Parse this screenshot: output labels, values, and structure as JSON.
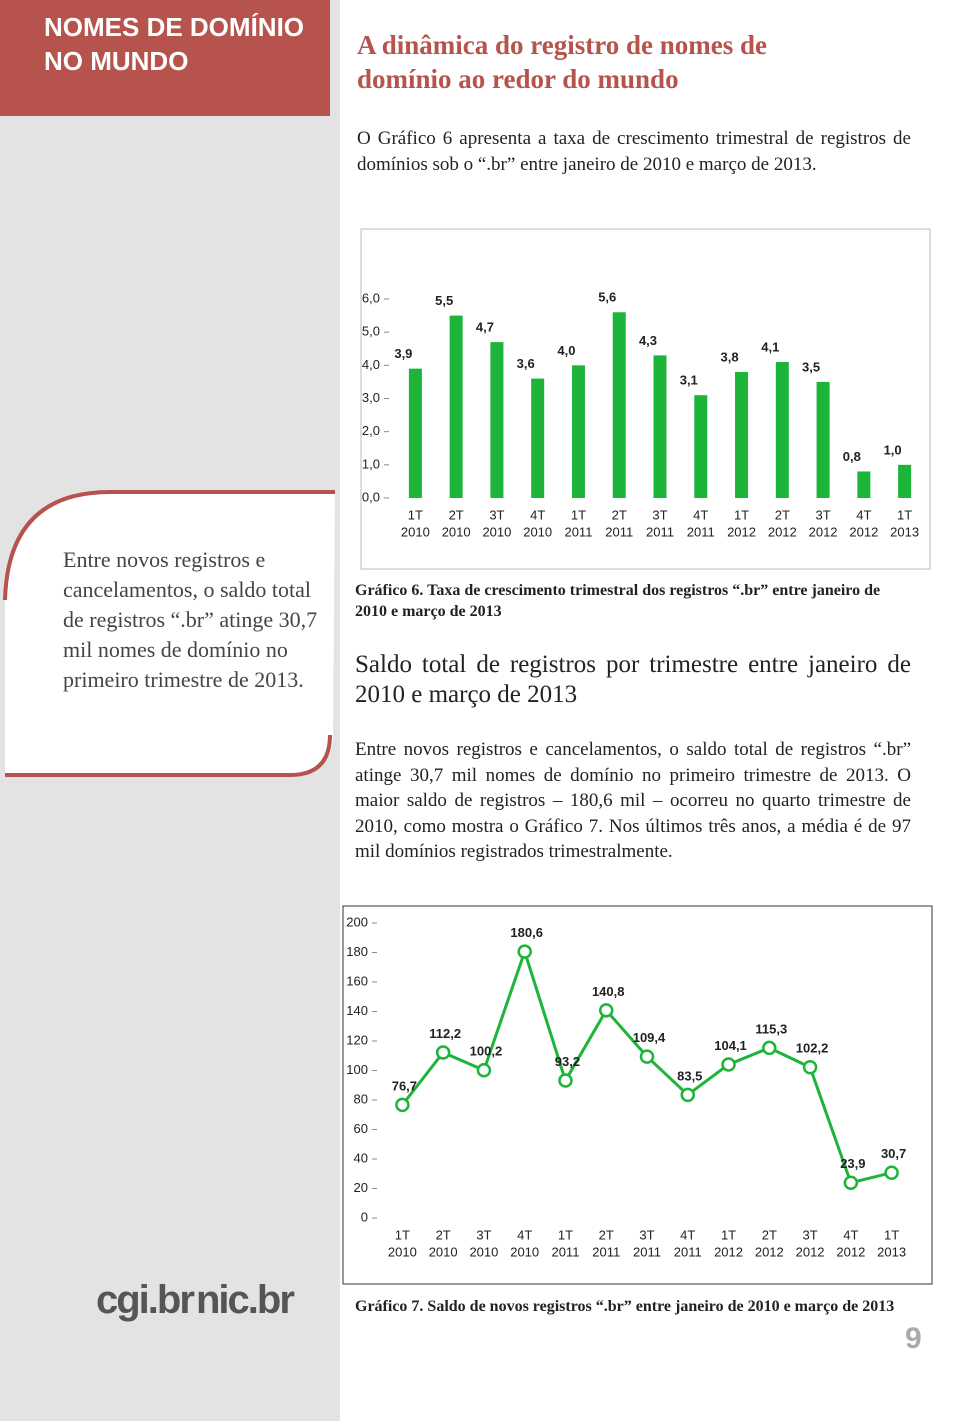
{
  "header": {
    "section": "NOMES DE DOMÍNIO NO MUNDO",
    "title": "A dinâmica do registro de nomes de domínio ao redor do mundo"
  },
  "intro": "O Gráfico 6 apresenta a taxa de crescimento trimestral de registros de domínios sob o “.br” entre janeiro de 2010 e março de 2013.",
  "sidebar": "Entre novos registros e cancelamentos, o saldo total de registros “.br” atinge 30,7 mil nomes de domínio no primeiro trimestre de 2013.",
  "chart_data": [
    {
      "type": "bar",
      "color": "#1db43a",
      "caption": "Gráfico 6. Taxa de crescimento trimestral dos registros “.br” entre janeiro de 2010 e março de 2013",
      "categories": [
        [
          "1T",
          "2010"
        ],
        [
          "2T",
          "2010"
        ],
        [
          "3T",
          "2010"
        ],
        [
          "4T",
          "2010"
        ],
        [
          "1T",
          "2011"
        ],
        [
          "2T",
          "2011"
        ],
        [
          "3T",
          "2011"
        ],
        [
          "4T",
          "2011"
        ],
        [
          "1T",
          "2012"
        ],
        [
          "2T",
          "2012"
        ],
        [
          "3T",
          "2012"
        ],
        [
          "4T",
          "2012"
        ],
        [
          "1T",
          "2013"
        ]
      ],
      "values": [
        3.9,
        5.5,
        4.7,
        3.6,
        4.0,
        5.6,
        4.3,
        3.1,
        3.8,
        4.1,
        3.5,
        0.8,
        1.0
      ],
      "value_labels": [
        "3,9",
        "5,5",
        "4,7",
        "3,6",
        "4,0",
        "5,6",
        "4,3",
        "3,1",
        "3,8",
        "4,1",
        "3,5",
        "0,8",
        "1,0"
      ],
      "ylim": [
        0,
        6
      ],
      "yticks": [
        {
          "value": 0,
          "label": "0,0"
        },
        {
          "value": 1,
          "label": "1,0"
        },
        {
          "value": 2,
          "label": "2,0"
        },
        {
          "value": 3,
          "label": "3,0"
        },
        {
          "value": 4,
          "label": "4,0"
        },
        {
          "value": 5,
          "label": "5,0"
        },
        {
          "value": 6,
          "label": "6,0"
        }
      ],
      "grid": false
    },
    {
      "type": "line",
      "color": "#1db43a",
      "caption": "Gráfico 7. Saldo de novos registros “.br” entre janeiro de 2010 e março de 2013",
      "categories": [
        [
          "1T",
          "2010"
        ],
        [
          "2T",
          "2010"
        ],
        [
          "3T",
          "2010"
        ],
        [
          "4T",
          "2010"
        ],
        [
          "1T",
          "2011"
        ],
        [
          "2T",
          "2011"
        ],
        [
          "3T",
          "2011"
        ],
        [
          "4T",
          "2011"
        ],
        [
          "1T",
          "2012"
        ],
        [
          "2T",
          "2012"
        ],
        [
          "3T",
          "2012"
        ],
        [
          "4T",
          "2012"
        ],
        [
          "1T",
          "2013"
        ]
      ],
      "values": [
        76.7,
        112.2,
        100.2,
        180.6,
        93.2,
        140.8,
        109.4,
        83.5,
        104.1,
        115.3,
        102.2,
        23.9,
        30.7
      ],
      "value_labels": [
        "76,7",
        "112,2",
        "100,2",
        "180,6",
        "93,2",
        "140,8",
        "109,4",
        "83,5",
        "104,1",
        "115,3",
        "102,2",
        "23,9",
        "30,7"
      ],
      "ylim": [
        0,
        200
      ],
      "yticks": [
        0,
        20,
        40,
        60,
        80,
        100,
        120,
        140,
        160,
        180,
        200
      ],
      "grid": false
    }
  ],
  "section_title": "Saldo total de registros por trimestre entre janeiro de 2010 e março de 2013",
  "paragraph": "Entre novos registros e cancelamentos, o saldo total de registros “.br” atinge 30,7 mil nomes de domínio no primeiro trimestre de 2013. O maior saldo de registros – 180,6 mil – ocorreu no quarto trimestre de 2010, como mostra o Gráfico 7. Nos últimos três anos, a média é de 97 mil domínios registrados trimestralmente.",
  "logos": [
    "cgi.br",
    "nic.br"
  ],
  "page_number": "9"
}
